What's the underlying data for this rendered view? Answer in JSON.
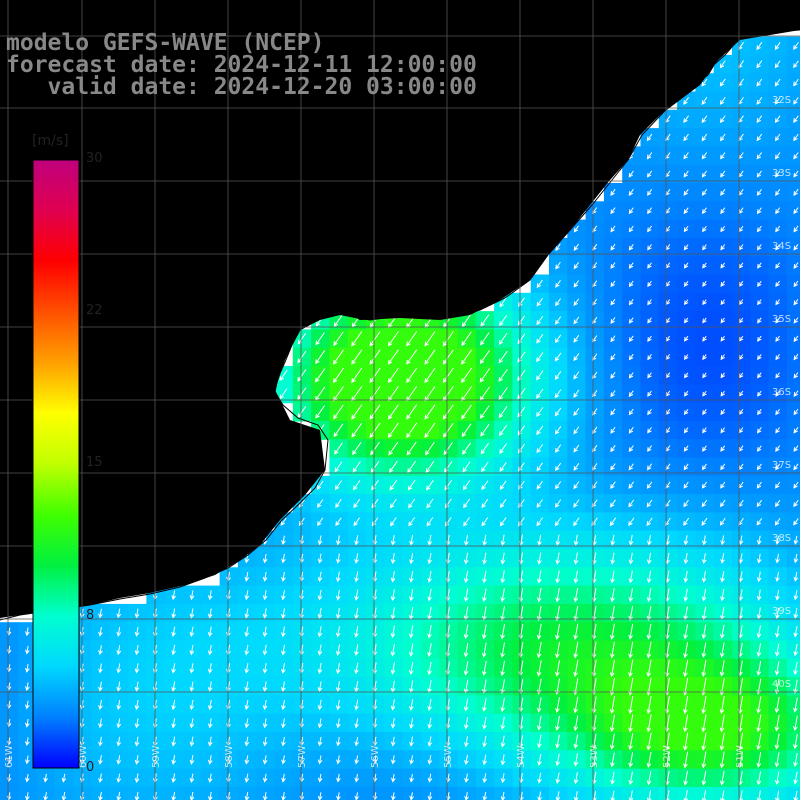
{
  "title": {
    "line1": "modelo GEFS-WAVE (NCEP)",
    "line2": "forecast date: 2024-12-11 12:00:00",
    "line3": "   valid date: 2024-12-20 03:00:00"
  },
  "colorbar": {
    "unit": "[m/s]",
    "ticks": [
      "30",
      "22",
      "15",
      "8",
      "0"
    ],
    "min": 0,
    "max": 30,
    "colors": [
      "#0000ff",
      "#0080ff",
      "#00d8ff",
      "#00ffd0",
      "#00f040",
      "#40ff00",
      "#c0ff00",
      "#ffff00",
      "#ffa000",
      "#ff5000",
      "#ff0000",
      "#e00050",
      "#c0007c"
    ]
  },
  "grid": {
    "lat_labels": [
      "32S",
      "33S",
      "34S",
      "35S",
      "36S",
      "37S",
      "38S",
      "39S",
      "40S"
    ],
    "lon_labels": [
      "61W",
      "60W",
      "59W",
      "58W",
      "57W",
      "56W",
      "55W",
      "54W",
      "53W",
      "52W",
      "51W"
    ]
  },
  "colors": {
    "land": "#ffffff",
    "coast": "#000000",
    "grid": "#555555",
    "arrow": "#ffffff"
  },
  "wind_field": {
    "units": "m/s",
    "speed_range": [
      0,
      12
    ]
  }
}
